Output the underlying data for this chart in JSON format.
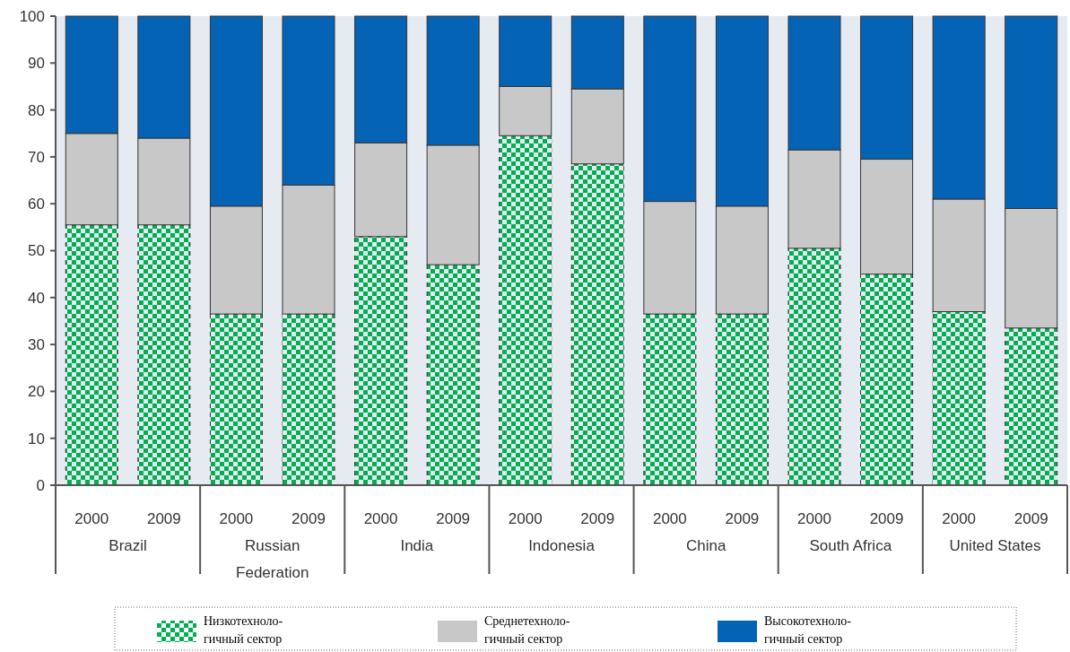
{
  "chart_data": {
    "type": "bar",
    "stacked": true,
    "categories": [
      "2000",
      "2009",
      "2000",
      "2009",
      "2000",
      "2009",
      "2000",
      "2009",
      "2000",
      "2009",
      "2000",
      "2009",
      "2000",
      "2009"
    ],
    "annotations": [
      "Brazil",
      "Russian Federation",
      "India",
      "Indonesia",
      "China",
      "South Africa",
      "United States"
    ],
    "series": [
      {
        "name": "Низкотехноло- гичный сектор",
        "color": "#00b050",
        "values": [
          55.5,
          55.5,
          36.5,
          36.5,
          53,
          47,
          74.5,
          68.5,
          36.5,
          36.5,
          50.5,
          45,
          37,
          33.5
        ]
      },
      {
        "name": "Среднетехноло- гичный сектор",
        "color": "#c8c8c8",
        "values": [
          19.5,
          18.5,
          23,
          27.5,
          20,
          25.5,
          10.5,
          16,
          24,
          23,
          21,
          24.5,
          24,
          25.5
        ]
      },
      {
        "name": "Высокотехноло- гичный сектор",
        "color": "#0563b5",
        "values": [
          25,
          26,
          40.5,
          36,
          27,
          27.5,
          15,
          15.5,
          39.5,
          40.5,
          28.5,
          30.5,
          39,
          41
        ]
      }
    ],
    "ylim": [
      0,
      100
    ],
    "yticks": [
      0,
      10,
      20,
      30,
      40,
      50,
      60,
      70,
      80,
      90,
      100
    ],
    "legend": "bottom"
  }
}
